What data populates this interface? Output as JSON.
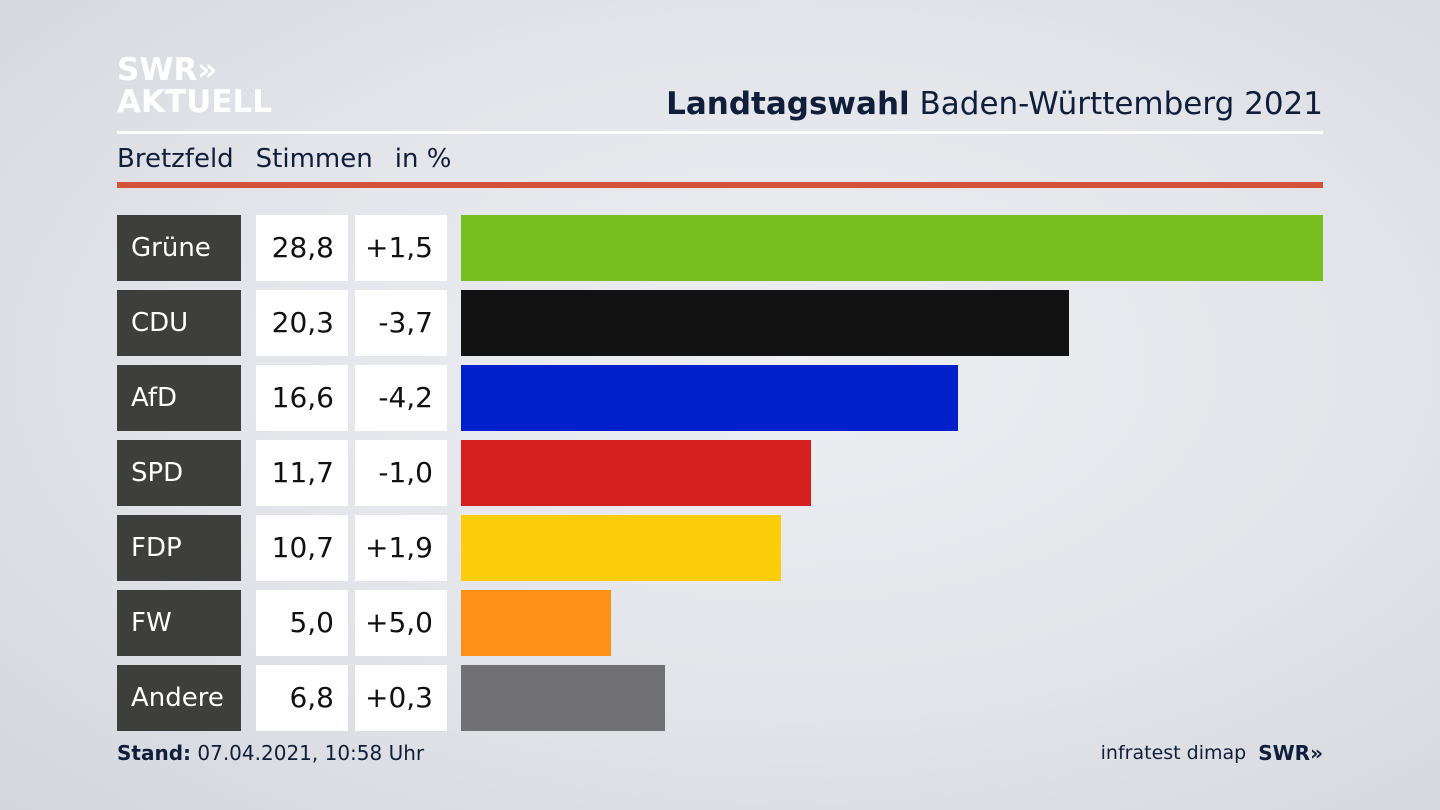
{
  "header": {
    "logo_line1": "SWR»",
    "logo_line2": "AKTUELL",
    "title_bold": "Landtagswahl",
    "title_rest": "Baden-Württemberg 2021"
  },
  "subheader": {
    "place": "Bretzfeld",
    "measure": "Stimmen",
    "unit": "in %"
  },
  "chart_data": {
    "type": "bar",
    "orientation": "horizontal",
    "title": "Landtagswahl Baden-Württemberg 2021",
    "subtitle": "Bretzfeld Stimmen in %",
    "categories": [
      "Grüne",
      "CDU",
      "AfD",
      "SPD",
      "FDP",
      "FW",
      "Andere"
    ],
    "values": [
      28.8,
      20.3,
      16.6,
      11.7,
      10.7,
      5.0,
      6.8
    ],
    "labels": [
      "28,8",
      "20,3",
      "16,6",
      "11,7",
      "10,7",
      "5,0",
      "6,8"
    ],
    "changes": [
      "+1,5",
      "-3,7",
      "-4,2",
      "-1,0",
      "+1,9",
      "+5,0",
      "+0,3"
    ],
    "colors": [
      "#78be1e",
      "#121212",
      "#0020cc",
      "#d51f1f",
      "#fdcc0a",
      "#fd9118",
      "#717173"
    ],
    "xlim": [
      0,
      28.8
    ]
  },
  "footer": {
    "stand_label": "Stand:",
    "stand_value": "07.04.2021, 10:58 Uhr",
    "source": "infratest dimap",
    "brand": "SWR»"
  }
}
